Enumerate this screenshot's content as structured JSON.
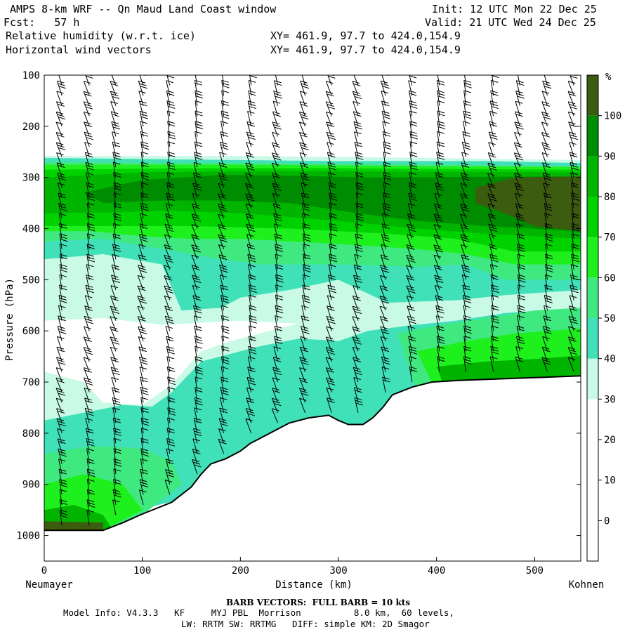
{
  "header": {
    "title": "AMPS 8-km WRF -- Qn Maud Land Coast window",
    "fcst": "Fcst:   57 h",
    "init": "Init: 12 UTC Mon 22 Dec 25",
    "valid": "Valid: 21 UTC Wed 24 Dec 25",
    "field1": "Relative humidity (w.r.t. ice)",
    "field2": "Horizontal wind vectors",
    "xy1": "XY= 461.9, 97.7 to 424.0,154.9",
    "xy2": "XY= 461.9, 97.7 to 424.0,154.9"
  },
  "footer": {
    "barb": "BARB VECTORS:  FULL BARB = 10 kts",
    "model1": "Model Info: V4.3.3   KF     MYJ PBL  Morrison          8.0 km,  60 levels,",
    "model2": "LW: RRTM SW: RRTMG   DIFF: simple KM: 2D Smagor"
  },
  "colors": {
    "c30": "#c8fae6",
    "c40": "#40e0b8",
    "c50": "#40e880",
    "c60": "#1ef01e",
    "c70": "#00d200",
    "c80": "#00b400",
    "c90": "#008c00",
    "c100": "#3c5c10"
  },
  "chart_data": {
    "type": "cross-section-contour",
    "xlabel": "Distance (km)",
    "ylabel": "Pressure (hPa)",
    "x_start_label": "Neumayer",
    "x_end_label": "Kohnen",
    "xlim": [
      0,
      547
    ],
    "ylim": [
      100,
      1050
    ],
    "x_ticks": [
      0,
      100,
      200,
      300,
      400,
      500
    ],
    "x_tick_labels": [
      "0",
      "100",
      "200",
      "300",
      "400",
      "500"
    ],
    "y_ticks": [
      100,
      200,
      300,
      400,
      500,
      600,
      700,
      800,
      900,
      1000
    ],
    "y_tick_labels": [
      "100",
      "200",
      "300",
      "400",
      "500",
      "600",
      "700",
      "800",
      "900",
      "1000"
    ],
    "colorbar_unit": "%",
    "colorbar_levels": [
      0,
      10,
      20,
      30,
      40,
      50,
      60,
      70,
      80,
      90,
      100
    ],
    "colorbar_labels": [
      "0",
      "10",
      "20",
      "30",
      "40",
      "50",
      "60",
      "70",
      "80",
      "90",
      "100"
    ],
    "terrain": {
      "x": [
        0,
        60,
        80,
        100,
        130,
        150,
        160,
        170,
        185,
        200,
        210,
        220,
        235,
        250,
        270,
        290,
        300,
        310,
        325,
        335,
        345,
        355,
        375,
        395,
        420,
        547
      ],
      "p": [
        990,
        990,
        975,
        958,
        935,
        905,
        880,
        860,
        850,
        835,
        820,
        810,
        795,
        780,
        770,
        765,
        775,
        783,
        783,
        770,
        750,
        725,
        710,
        700,
        697,
        688
      ]
    },
    "rh_regions": [
      {
        "level": 30,
        "p_top": [
          258,
          258,
          262,
          265,
          268
        ],
        "p_bottom": [
          580,
          590,
          600,
          600,
          520
        ],
        "description": "upper moist layer and lower cloud layer"
      },
      {
        "level": 100,
        "region": "near 300-420 hPa at 440-547 km and surface near 0-60 km"
      }
    ],
    "wind_barbs": {
      "x_columns": [
        18,
        46,
        73,
        101,
        128,
        156,
        183,
        211,
        238,
        266,
        293,
        320,
        348,
        375,
        403,
        430,
        458,
        485,
        513,
        540
      ],
      "levels_hPa": [
        100,
        120,
        140,
        160,
        180,
        200,
        220,
        240,
        260,
        280,
        300,
        320,
        340,
        360,
        380,
        400,
        420,
        440,
        460,
        480,
        500,
        520,
        540,
        560,
        580,
        600,
        620,
        640,
        660,
        680,
        700,
        720,
        740,
        760,
        780,
        800,
        820,
        840,
        860,
        880,
        900,
        920,
        940,
        960,
        980
      ],
      "full_barb_kts": 10
    }
  }
}
